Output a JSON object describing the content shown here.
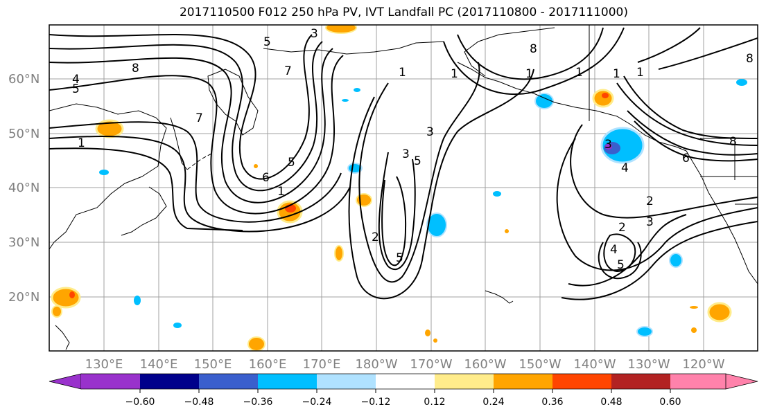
{
  "title": "2017110500 F012 250 hPa PV, IVT Landfall PC (2017110800 - 2017111000)",
  "lat_labels": [
    "60°N",
    "50°N",
    "40°N",
    "30°N",
    "20°N"
  ],
  "lon_labels": [
    "130°E",
    "140°E",
    "150°E",
    "160°E",
    "170°E",
    "180°W",
    "170°W",
    "160°W",
    "150°W",
    "140°W",
    "130°W",
    "120°W"
  ],
  "colorbar": {
    "colors": [
      "#9932cc",
      "#00008b",
      "#3a5fcd",
      "#00bfff",
      "#b0e2ff",
      "#ffffff",
      "#ffec8b",
      "#ffa500",
      "#ff4500",
      "#b22222",
      "#ff82ab"
    ],
    "ticks": [
      "−0.60",
      "−0.48",
      "−0.36",
      "−0.24",
      "−0.12",
      "0.12",
      "0.24",
      "0.36",
      "0.48",
      "0.60"
    ]
  },
  "contour_labels": [
    "5",
    "7",
    "8",
    "4",
    "5",
    "1",
    "7",
    "6",
    "1",
    "5",
    "3",
    "1",
    "3",
    "3",
    "5",
    "2",
    "5",
    "8",
    "1",
    "1",
    "1",
    "1",
    "3",
    "4",
    "6",
    "8",
    "2",
    "3",
    "2",
    "4",
    "5",
    "8",
    "1"
  ]
}
